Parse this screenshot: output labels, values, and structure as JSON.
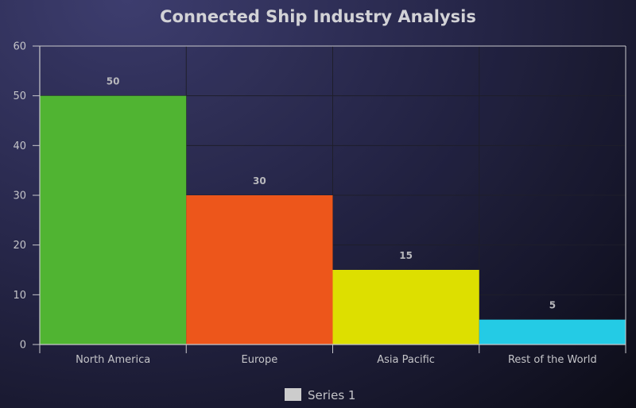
{
  "chart_data": {
    "type": "bar",
    "title": "Connected Ship Industry Analysis",
    "xlabel": "",
    "ylabel": "",
    "categories": [
      "North America",
      "Europe",
      "Asia Pacific",
      "Rest of the World"
    ],
    "series": [
      {
        "name": "Series 1",
        "values": [
          50,
          30,
          15,
          5
        ],
        "colors": [
          "#50b432",
          "#ed561b",
          "#dddf00",
          "#24cbe5"
        ]
      }
    ],
    "data_labels": [
      "50",
      "30",
      "15",
      "5"
    ],
    "ylim": [
      0,
      60
    ],
    "yticks": [
      0,
      10,
      20,
      30,
      40,
      50,
      60
    ],
    "grid": true,
    "legend": "bottom-center"
  },
  "colors": {
    "axis": "#c8c8cc",
    "grid": "#1e1e2a",
    "legend_swatch": "#cccccc"
  }
}
